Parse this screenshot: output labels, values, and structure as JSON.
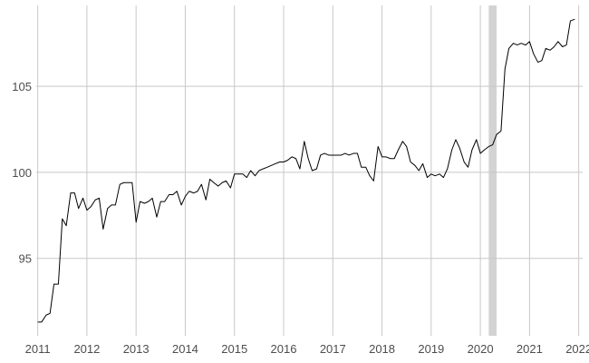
{
  "chart_data": {
    "type": "line",
    "title": "",
    "xlabel": "",
    "ylabel": "",
    "xlim": [
      2010.97,
      2022.08
    ],
    "ylim": [
      90.5,
      109.7
    ],
    "x_ticks": [
      2011,
      2012,
      2013,
      2014,
      2015,
      2016,
      2017,
      2018,
      2019,
      2020,
      2021,
      2022
    ],
    "x_tick_labels": [
      "2011",
      "2012",
      "2013",
      "2014",
      "2015",
      "2016",
      "2017",
      "2018",
      "2019",
      "2020",
      "2021",
      "2022"
    ],
    "y_ticks": [
      95,
      100,
      105
    ],
    "y_tick_labels": [
      "95",
      "100",
      "105"
    ],
    "grid": true,
    "legend": "none",
    "colors": {
      "line": "#000000",
      "grid": "#c8c8c8",
      "shade": "#d3d3d3",
      "tick_text": "#4d4d4d"
    },
    "shaded_regions": [
      {
        "x_start": 2020.17,
        "x_end": 2020.33
      }
    ],
    "series": [
      {
        "x": [
          2011.0,
          2011.08,
          2011.17,
          2011.25,
          2011.33,
          2011.42,
          2011.5,
          2011.58,
          2011.67,
          2011.75,
          2011.83,
          2011.92,
          2012.0,
          2012.08,
          2012.17,
          2012.25,
          2012.33,
          2012.42,
          2012.5,
          2012.58,
          2012.67,
          2012.75,
          2012.83,
          2012.92,
          2013.0,
          2013.08,
          2013.17,
          2013.25,
          2013.33,
          2013.42,
          2013.5,
          2013.58,
          2013.67,
          2013.75,
          2013.83,
          2013.92,
          2014.0,
          2014.08,
          2014.17,
          2014.25,
          2014.33,
          2014.42,
          2014.5,
          2014.58,
          2014.67,
          2014.75,
          2014.83,
          2014.92,
          2015.0,
          2015.08,
          2015.17,
          2015.25,
          2015.33,
          2015.42,
          2015.5,
          2015.58,
          2015.67,
          2015.75,
          2015.83,
          2015.92,
          2016.0,
          2016.08,
          2016.17,
          2016.25,
          2016.33,
          2016.42,
          2016.5,
          2016.58,
          2016.67,
          2016.75,
          2016.83,
          2016.92,
          2017.0,
          2017.08,
          2017.17,
          2017.25,
          2017.33,
          2017.42,
          2017.5,
          2017.58,
          2017.67,
          2017.75,
          2017.83,
          2017.92,
          2018.0,
          2018.08,
          2018.17,
          2018.25,
          2018.33,
          2018.42,
          2018.5,
          2018.58,
          2018.67,
          2018.75,
          2018.83,
          2018.92,
          2019.0,
          2019.08,
          2019.17,
          2019.25,
          2019.33,
          2019.42,
          2019.5,
          2019.58,
          2019.67,
          2019.75,
          2019.83,
          2019.92,
          2020.0,
          2020.08,
          2020.17,
          2020.25,
          2020.33,
          2020.42,
          2020.5,
          2020.58,
          2020.67,
          2020.75,
          2020.83,
          2020.92,
          2021.0,
          2021.08,
          2021.17,
          2021.25,
          2021.33,
          2021.42,
          2021.5,
          2021.58,
          2021.67,
          2021.75,
          2021.83,
          2021.92
        ],
        "values": [
          91.3,
          91.3,
          91.7,
          91.8,
          93.5,
          93.5,
          97.3,
          96.9,
          98.8,
          98.8,
          97.9,
          98.5,
          97.8,
          98.0,
          98.4,
          98.5,
          96.7,
          97.9,
          98.1,
          98.1,
          99.3,
          99.4,
          99.4,
          99.4,
          97.1,
          98.3,
          98.2,
          98.3,
          98.5,
          97.4,
          98.3,
          98.3,
          98.7,
          98.7,
          98.9,
          98.1,
          98.6,
          98.9,
          98.8,
          98.9,
          99.3,
          98.4,
          99.6,
          99.4,
          99.2,
          99.4,
          99.5,
          99.1,
          99.9,
          99.9,
          99.9,
          99.7,
          100.1,
          99.8,
          100.1,
          100.2,
          100.3,
          100.4,
          100.5,
          100.6,
          100.6,
          100.7,
          100.9,
          100.8,
          100.2,
          101.8,
          100.8,
          100.1,
          100.2,
          101.0,
          101.1,
          101.0,
          101.0,
          101.0,
          101.0,
          101.1,
          101.0,
          101.1,
          101.1,
          100.3,
          100.3,
          99.8,
          99.5,
          101.5,
          100.9,
          100.9,
          100.8,
          100.8,
          101.3,
          101.8,
          101.5,
          100.6,
          100.4,
          100.1,
          100.5,
          99.7,
          99.9,
          99.8,
          99.9,
          99.7,
          100.2,
          101.3,
          101.9,
          101.4,
          100.6,
          100.3,
          101.3,
          101.9,
          101.1,
          101.3,
          101.5,
          101.6,
          102.2,
          102.4,
          106.0,
          107.2,
          107.5,
          107.4,
          107.5,
          107.4,
          107.6,
          106.9,
          106.4,
          106.5,
          107.2,
          107.1,
          107.3,
          107.6,
          107.3,
          107.4,
          108.8,
          108.9
        ]
      }
    ]
  }
}
